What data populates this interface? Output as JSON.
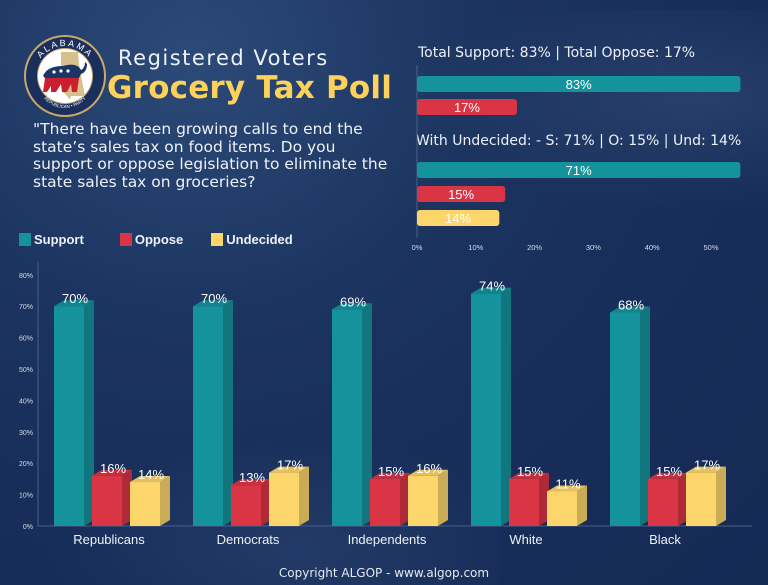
{
  "header": {
    "subtitle": "Registered Voters",
    "title": "Grocery Tax Poll",
    "logo": {
      "ring_text_top": "ALABAMA",
      "ring_text_bottom": "REPUBLICAN • PARTY",
      "icon": "elephant-alabama-seal-icon"
    }
  },
  "question": "\"There have been growing calls to end the state’s sales tax on food items. Do you support or oppose legislation to eliminate the state sales tax on groceries?",
  "colors": {
    "support": "#15939c",
    "oppose": "#d93545",
    "undecided": "#fdd66b",
    "title": "#fdd25a",
    "background": "#172c58"
  },
  "legend": [
    {
      "label": "Support",
      "key": "support"
    },
    {
      "label": "Oppose",
      "key": "oppose"
    },
    {
      "label": "Undecided",
      "key": "undecided"
    }
  ],
  "footer": "Copyright ALGOP -  www.algop.com",
  "chart_data": [
    {
      "type": "bar",
      "orientation": "horizontal",
      "title": "Total Support: 83% | Total Oppose: 17%",
      "categories": [
        "Support",
        "Oppose"
      ],
      "values": [
        83,
        17
      ],
      "data_labels": [
        "83%",
        "17%"
      ],
      "xlim": [
        0,
        55
      ],
      "grid": false
    },
    {
      "type": "bar",
      "orientation": "horizontal",
      "title": "With Undecided: - S: 71% | O: 15% | Und: 14%",
      "categories": [
        "Support",
        "Oppose",
        "Undecided"
      ],
      "values": [
        71,
        15,
        14
      ],
      "data_labels": [
        "71%",
        "15%",
        "14%"
      ],
      "xlim": [
        0,
        55
      ],
      "xticks": [
        "0%",
        "10%",
        "20%",
        "30%",
        "40%",
        "50%"
      ],
      "grid": false
    },
    {
      "type": "bar",
      "orientation": "vertical",
      "style": "3d-grouped",
      "title": "",
      "categories": [
        "Republicans",
        "Democrats",
        "Independents",
        "White",
        "Black"
      ],
      "series": [
        {
          "name": "Support",
          "values": [
            70,
            70,
            69,
            74,
            68
          ]
        },
        {
          "name": "Oppose",
          "values": [
            16,
            13,
            15,
            15,
            15
          ]
        },
        {
          "name": "Undecided",
          "values": [
            14,
            17,
            16,
            11,
            17
          ]
        }
      ],
      "ylim": [
        0,
        80
      ],
      "yticks": [
        "0%",
        "10%",
        "20%",
        "30%",
        "40%",
        "50%",
        "60%",
        "70%",
        "80%"
      ],
      "legend": "top-left",
      "grid": false
    }
  ]
}
